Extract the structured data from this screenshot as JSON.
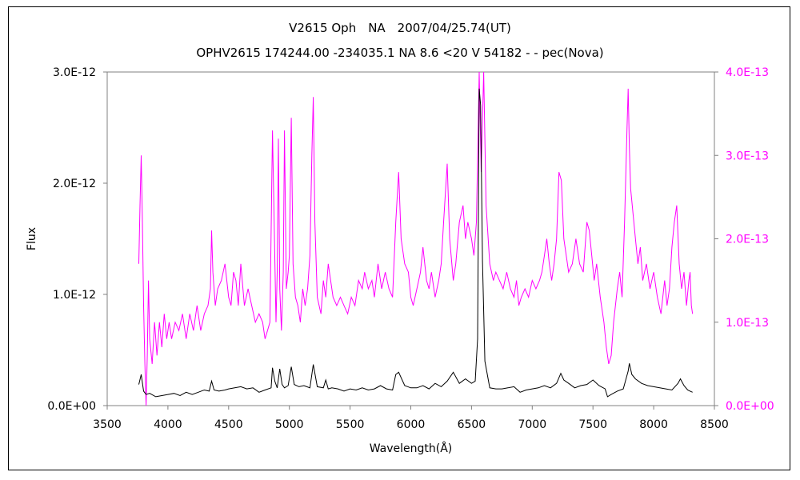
{
  "chart_data": {
    "type": "line",
    "title": "V2615 Oph　NA　2007/04/25.74(UT)",
    "subtitle": "OPHV2615 174244.00 -234035.1 NA 8.6 <20 V 54182 - - pec(Nova)",
    "xlabel": "Wavelength(Å)",
    "ylabel": "Flux",
    "xlim": [
      3500,
      8500
    ],
    "ylim_left": [
      0,
      3e-12
    ],
    "ylim_right": [
      0,
      4e-13
    ],
    "x_ticks": [
      "3500",
      "4000",
      "4500",
      "5000",
      "5500",
      "6000",
      "6500",
      "7000",
      "7500",
      "8000",
      "8500"
    ],
    "y_ticks_left": [
      "0.0E+00",
      "1.0E-12",
      "2.0E-12",
      "3.0E-12"
    ],
    "y_ticks_right": [
      "0.0E+00",
      "1.0E-13",
      "2.0E-13",
      "3.0E-13",
      "4.0E-13"
    ],
    "grid": false,
    "colors": {
      "left_series": "#000000",
      "right_series": "#ff00ff"
    },
    "series": [
      {
        "axis": "left",
        "color": "#000000",
        "x": [
          3760,
          3780,
          3800,
          3820,
          3850,
          3900,
          3950,
          4000,
          4050,
          4100,
          4150,
          4200,
          4250,
          4300,
          4340,
          4360,
          4380,
          4420,
          4470,
          4500,
          4550,
          4600,
          4650,
          4700,
          4750,
          4800,
          4850,
          4861,
          4880,
          4900,
          4921,
          4940,
          4960,
          4990,
          5016,
          5040,
          5080,
          5120,
          5169,
          5197,
          5230,
          5280,
          5300,
          5320,
          5350,
          5400,
          5450,
          5500,
          5550,
          5600,
          5650,
          5700,
          5750,
          5800,
          5850,
          5876,
          5900,
          5950,
          6000,
          6050,
          6100,
          6150,
          6200,
          6250,
          6300,
          6350,
          6400,
          6450,
          6500,
          6530,
          6550,
          6563,
          6575,
          6590,
          6610,
          6650,
          6700,
          6750,
          6800,
          6850,
          6900,
          6950,
          7000,
          7050,
          7100,
          7150,
          7200,
          7235,
          7260,
          7300,
          7350,
          7400,
          7450,
          7500,
          7550,
          7600,
          7620,
          7650,
          7700,
          7750,
          7790,
          7800,
          7820,
          7850,
          7900,
          7950,
          8000,
          8050,
          8100,
          8150,
          8200,
          8220,
          8250,
          8280,
          8300,
          8320
        ],
        "y": [
          1.9e-13,
          2.8e-13,
          1.3e-13,
          1e-13,
          1.1e-13,
          8e-14,
          9e-14,
          1e-13,
          1.1e-13,
          9e-14,
          1.2e-13,
          1e-13,
          1.2e-13,
          1.4e-13,
          1.3e-13,
          2.2e-13,
          1.4e-13,
          1.3e-13,
          1.4e-13,
          1.5e-13,
          1.6e-13,
          1.7e-13,
          1.5e-13,
          1.6e-13,
          1.2e-13,
          1.4e-13,
          1.6e-13,
          3.4e-13,
          2.2e-13,
          1.6e-13,
          3.3e-13,
          1.9e-13,
          1.6e-13,
          1.8e-13,
          3.5e-13,
          1.9e-13,
          1.7e-13,
          1.8e-13,
          1.6e-13,
          3.7e-13,
          1.7e-13,
          1.6e-13,
          2.3e-13,
          1.5e-13,
          1.6e-13,
          1.5e-13,
          1.3e-13,
          1.5e-13,
          1.4e-13,
          1.6e-13,
          1.4e-13,
          1.5e-13,
          1.8e-13,
          1.5e-13,
          1.4e-13,
          2.8e-13,
          3e-13,
          1.8e-13,
          1.6e-13,
          1.6e-13,
          1.8e-13,
          1.5e-13,
          2e-13,
          1.7e-13,
          2.2e-13,
          3e-13,
          2e-13,
          2.4e-13,
          2e-13,
          2.2e-13,
          6e-13,
          2.85e-12,
          2.7e-12,
          1.3e-12,
          4e-13,
          1.6e-13,
          1.5e-13,
          1.5e-13,
          1.6e-13,
          1.7e-13,
          1.2e-13,
          1.4e-13,
          1.5e-13,
          1.6e-13,
          1.8e-13,
          1.6e-13,
          2e-13,
          2.9e-13,
          2.3e-13,
          2e-13,
          1.6e-13,
          1.8e-13,
          1.9e-13,
          2.3e-13,
          1.8e-13,
          1.5e-13,
          8e-14,
          1e-13,
          1.3e-13,
          1.5e-13,
          3.1e-13,
          3.8e-13,
          2.8e-13,
          2.4e-13,
          2e-13,
          1.8e-13,
          1.7e-13,
          1.6e-13,
          1.5e-13,
          1.4e-13,
          2e-13,
          2.4e-13,
          1.8e-13,
          1.4e-13,
          1.3e-13,
          1.2e-13
        ]
      },
      {
        "axis": "right",
        "color": "#ff00ff",
        "x": [
          3760,
          3770,
          3780,
          3790,
          3800,
          3810,
          3820,
          3830,
          3840,
          3850,
          3870,
          3890,
          3910,
          3930,
          3950,
          3970,
          3990,
          4010,
          4030,
          4060,
          4090,
          4120,
          4150,
          4180,
          4210,
          4240,
          4270,
          4300,
          4330,
          4350,
          4360,
          4370,
          4390,
          4410,
          4440,
          4470,
          4500,
          4520,
          4540,
          4560,
          4580,
          4600,
          4630,
          4660,
          4690,
          4720,
          4750,
          4780,
          4800,
          4820,
          4840,
          4861,
          4875,
          4890,
          4900,
          4910,
          4921,
          4935,
          4950,
          4960,
          4975,
          4990,
          5000,
          5016,
          5030,
          5050,
          5070,
          5090,
          5110,
          5130,
          5150,
          5169,
          5185,
          5197,
          5210,
          5230,
          5260,
          5280,
          5300,
          5320,
          5340,
          5360,
          5390,
          5420,
          5450,
          5480,
          5510,
          5540,
          5570,
          5600,
          5620,
          5650,
          5680,
          5700,
          5730,
          5760,
          5790,
          5820,
          5850,
          5876,
          5900,
          5920,
          5950,
          5980,
          6000,
          6020,
          6050,
          6080,
          6100,
          6130,
          6150,
          6170,
          6200,
          6230,
          6250,
          6270,
          6300,
          6320,
          6350,
          6370,
          6400,
          6430,
          6450,
          6470,
          6500,
          6520,
          6540,
          6563,
          6580,
          6600,
          6620,
          6650,
          6680,
          6700,
          6730,
          6760,
          6790,
          6820,
          6850,
          6870,
          6890,
          6910,
          6940,
          6970,
          7000,
          7030,
          7060,
          7080,
          7100,
          7120,
          7140,
          7160,
          7180,
          7200,
          7220,
          7240,
          7260,
          7280,
          7300,
          7330,
          7360,
          7390,
          7420,
          7450,
          7470,
          7490,
          7510,
          7530,
          7560,
          7590,
          7610,
          7630,
          7650,
          7670,
          7700,
          7720,
          7740,
          7760,
          7780,
          7790,
          7800,
          7810,
          7830,
          7850,
          7870,
          7890,
          7910,
          7940,
          7970,
          8000,
          8030,
          8060,
          8090,
          8110,
          8130,
          8150,
          8170,
          8190,
          8210,
          8230,
          8250,
          8270,
          8290,
          8300,
          8310,
          8320
        ],
        "y": [
          1.7e-13,
          2.4e-13,
          3e-13,
          2.2e-13,
          1.2e-13,
          5e-14,
          0.0,
          6e-14,
          1.5e-13,
          8e-14,
          5e-14,
          1e-13,
          6e-14,
          1e-13,
          7e-14,
          1.1e-13,
          8e-14,
          1e-13,
          8e-14,
          1e-13,
          9e-14,
          1.1e-13,
          8e-14,
          1.1e-13,
          9e-14,
          1.2e-13,
          9e-14,
          1.1e-13,
          1.2e-13,
          1.4e-13,
          2.1e-13,
          1.6e-13,
          1.2e-13,
          1.4e-13,
          1.5e-13,
          1.7e-13,
          1.3e-13,
          1.2e-13,
          1.6e-13,
          1.5e-13,
          1.2e-13,
          1.7e-13,
          1.2e-13,
          1.4e-13,
          1.2e-13,
          1e-13,
          1.1e-13,
          1e-13,
          8e-14,
          9e-14,
          1e-13,
          3.3e-13,
          2.2e-13,
          1e-13,
          1.6e-13,
          3.2e-13,
          1.4e-13,
          9e-14,
          1.6e-13,
          3.3e-13,
          1.4e-13,
          1.6e-13,
          1.8e-13,
          3.45e-13,
          1.7e-13,
          1.3e-13,
          1.2e-13,
          1e-13,
          1.4e-13,
          1.2e-13,
          1.4e-13,
          1.8e-13,
          3e-13,
          3.7e-13,
          2.2e-13,
          1.3e-13,
          1.1e-13,
          1.5e-13,
          1.3e-13,
          1.7e-13,
          1.5e-13,
          1.3e-13,
          1.2e-13,
          1.3e-13,
          1.2e-13,
          1.1e-13,
          1.3e-13,
          1.2e-13,
          1.5e-13,
          1.4e-13,
          1.6e-13,
          1.4e-13,
          1.5e-13,
          1.3e-13,
          1.7e-13,
          1.4e-13,
          1.6e-13,
          1.4e-13,
          1.3e-13,
          2.2e-13,
          2.8e-13,
          2e-13,
          1.7e-13,
          1.6e-13,
          1.3e-13,
          1.2e-13,
          1.4e-13,
          1.6e-13,
          1.9e-13,
          1.5e-13,
          1.4e-13,
          1.6e-13,
          1.3e-13,
          1.5e-13,
          1.7e-13,
          2.2e-13,
          2.9e-13,
          2e-13,
          1.5e-13,
          1.7e-13,
          2.2e-13,
          2.4e-13,
          2e-13,
          2.2e-13,
          2e-13,
          1.8e-13,
          2.2e-13,
          4e-13,
          2.8e-13,
          4e-13,
          2.4e-13,
          1.7e-13,
          1.5e-13,
          1.6e-13,
          1.5e-13,
          1.4e-13,
          1.6e-13,
          1.4e-13,
          1.3e-13,
          1.5e-13,
          1.2e-13,
          1.3e-13,
          1.4e-13,
          1.3e-13,
          1.5e-13,
          1.4e-13,
          1.5e-13,
          1.6e-13,
          1.8e-13,
          2e-13,
          1.7e-13,
          1.5e-13,
          1.7e-13,
          2e-13,
          2.8e-13,
          2.7e-13,
          2e-13,
          1.8e-13,
          1.6e-13,
          1.7e-13,
          2e-13,
          1.7e-13,
          1.6e-13,
          2.2e-13,
          2.1e-13,
          1.8e-13,
          1.5e-13,
          1.7e-13,
          1.3e-13,
          1e-13,
          7e-14,
          5e-14,
          6e-14,
          1e-13,
          1.4e-13,
          1.6e-13,
          1.3e-13,
          2.2e-13,
          3.3e-13,
          3.8e-13,
          3.1e-13,
          2.6e-13,
          2.3e-13,
          2e-13,
          1.7e-13,
          1.9e-13,
          1.5e-13,
          1.7e-13,
          1.4e-13,
          1.6e-13,
          1.3e-13,
          1.1e-13,
          1.5e-13,
          1.2e-13,
          1.4e-13,
          1.9e-13,
          2.2e-13,
          2.4e-13,
          1.7e-13,
          1.4e-13,
          1.6e-13,
          1.2e-13,
          1.5e-13,
          1.6e-13,
          1.2e-13,
          1.1e-13
        ]
      }
    ]
  }
}
